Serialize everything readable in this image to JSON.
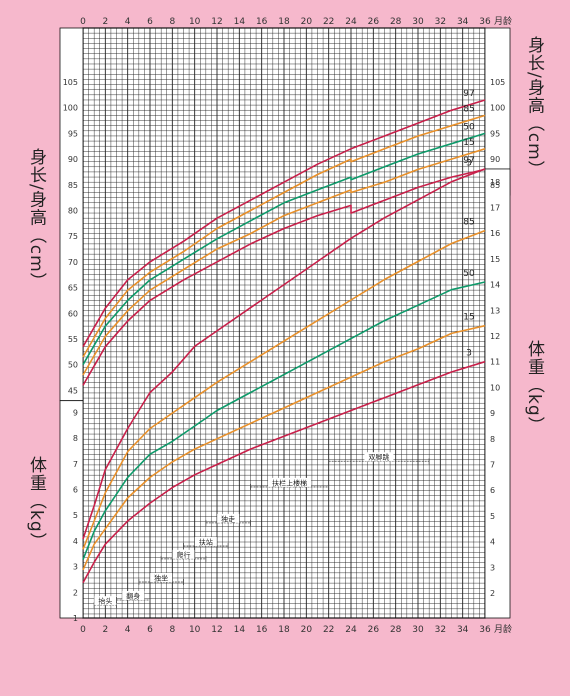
{
  "chart_data": {
    "type": "line",
    "x_unit_label": "月龄",
    "x_ticks": [
      0,
      2,
      4,
      6,
      8,
      10,
      12,
      14,
      16,
      18,
      20,
      22,
      24,
      26,
      28,
      30,
      32,
      34,
      36
    ],
    "x_range": [
      0,
      36
    ],
    "height": {
      "axis_label_left": "身长/身高（cm）",
      "axis_label_right": "身长/身高（cm）",
      "ylim": [
        40,
        110
      ],
      "left_ticks": [
        45,
        50,
        55,
        60,
        65,
        70,
        75,
        80,
        85,
        90,
        95,
        100,
        105
      ],
      "right_ticks": [
        85,
        90,
        95,
        100,
        105
      ],
      "series": [
        {
          "name": "97",
          "color": "#c8204a",
          "x": [
            0,
            2,
            4,
            6,
            9,
            12,
            15,
            18,
            21,
            24,
            24,
            27,
            30,
            33,
            36
          ],
          "y": [
            53.5,
            61,
            66.5,
            70,
            74,
            78.5,
            82,
            85.5,
            89,
            92,
            92,
            94.5,
            97,
            99.5,
            101.5
          ]
        },
        {
          "name": "85",
          "color": "#e8902a",
          "x": [
            0,
            2,
            4,
            6,
            9,
            12,
            15,
            18,
            21,
            24,
            24,
            27,
            30,
            33,
            36
          ],
          "y": [
            51.5,
            59,
            64.5,
            68,
            72,
            76.5,
            80,
            83.5,
            87,
            90,
            89.5,
            92,
            94.5,
            96.5,
            98.5
          ]
        },
        {
          "name": "50",
          "color": "#0e9a6a",
          "x": [
            0,
            2,
            4,
            6,
            9,
            12,
            15,
            18,
            21,
            24,
            24,
            27,
            30,
            33,
            36
          ],
          "y": [
            50,
            57.5,
            62.5,
            66.5,
            70.5,
            74.5,
            78,
            81.5,
            84,
            86.5,
            86,
            88.5,
            91,
            93,
            95
          ]
        },
        {
          "name": "15",
          "color": "#e8902a",
          "x": [
            0,
            2,
            4,
            6,
            9,
            12,
            15,
            18,
            21,
            24,
            24,
            27,
            30,
            33,
            36
          ],
          "y": [
            48,
            55.5,
            60.5,
            64.5,
            68.5,
            72.5,
            75.5,
            79,
            81.5,
            84,
            83.5,
            85.5,
            88,
            90,
            92
          ]
        },
        {
          "name": "3",
          "color": "#c8204a",
          "x": [
            0,
            2,
            4,
            6,
            9,
            12,
            15,
            18,
            21,
            24,
            24,
            27,
            30,
            33,
            36
          ],
          "y": [
            46,
            53.5,
            58.5,
            62.5,
            66.5,
            70,
            73.5,
            76.5,
            79,
            81,
            79.5,
            82,
            84.5,
            86.5,
            88
          ]
        }
      ]
    },
    "weight": {
      "axis_label_left": "体重（kg）",
      "axis_label_right": "体重（kg）",
      "ylim": [
        1,
        19
      ],
      "left_ticks": [
        1,
        2,
        3,
        4,
        5,
        6,
        7,
        8,
        9
      ],
      "right_ticks": [
        2,
        3,
        4,
        5,
        6,
        7,
        8,
        9,
        10,
        11,
        12,
        13,
        14,
        15,
        16,
        17,
        18
      ],
      "series": [
        {
          "name": "97",
          "color": "#c8204a",
          "x": [
            0,
            1,
            2,
            4,
            6,
            8,
            10,
            12,
            15,
            18,
            21,
            24,
            27,
            30,
            33,
            36
          ],
          "y": [
            4.1,
            5.4,
            6.8,
            8.4,
            9.8,
            10.6,
            11.6,
            12.2,
            13.1,
            14,
            14.9,
            15.8,
            16.6,
            17.3,
            18,
            18.5
          ]
        },
        {
          "name": "85",
          "color": "#e8902a",
          "x": [
            0,
            1,
            2,
            4,
            6,
            8,
            10,
            12,
            15,
            18,
            21,
            24,
            27,
            30,
            33,
            36
          ],
          "y": [
            3.7,
            4.8,
            5.9,
            7.5,
            8.4,
            9,
            9.6,
            10.2,
            11,
            11.8,
            12.6,
            13.4,
            14.2,
            14.9,
            15.6,
            16.1
          ]
        },
        {
          "name": "50",
          "color": "#0e9a6a",
          "x": [
            0,
            1,
            2,
            4,
            6,
            8,
            10,
            12,
            15,
            18,
            21,
            24,
            27,
            30,
            33,
            36
          ],
          "y": [
            3.3,
            4.4,
            5.2,
            6.5,
            7.4,
            7.9,
            8.5,
            9.1,
            9.8,
            10.5,
            11.2,
            11.9,
            12.6,
            13.2,
            13.8,
            14.1
          ]
        },
        {
          "name": "15",
          "color": "#e8902a",
          "x": [
            0,
            1,
            2,
            4,
            6,
            8,
            10,
            12,
            15,
            18,
            21,
            24,
            27,
            30,
            33,
            36
          ],
          "y": [
            2.9,
            3.9,
            4.5,
            5.7,
            6.5,
            7.1,
            7.6,
            8,
            8.6,
            9.2,
            9.8,
            10.4,
            11,
            11.5,
            12.1,
            12.4
          ]
        },
        {
          "name": "3",
          "color": "#c8204a",
          "x": [
            0,
            1,
            2,
            4,
            6,
            8,
            10,
            12,
            15,
            18,
            21,
            24,
            27,
            30,
            33,
            36
          ],
          "y": [
            2.4,
            3.2,
            3.9,
            4.8,
            5.5,
            6.1,
            6.6,
            7,
            7.6,
            8.1,
            8.6,
            9.1,
            9.6,
            10.1,
            10.6,
            11
          ]
        }
      ]
    },
    "milestones": [
      {
        "label": "抬头",
        "x_start": 1,
        "x_end": 3,
        "y": 1.5
      },
      {
        "label": "翻身",
        "x_start": 3,
        "x_end": 6,
        "y": 1.7
      },
      {
        "label": "独坐",
        "x_start": 5,
        "x_end": 9,
        "y": 2.4
      },
      {
        "label": "爬行",
        "x_start": 7,
        "x_end": 11,
        "y": 3.3
      },
      {
        "label": "扶站",
        "x_start": 9,
        "x_end": 13,
        "y": 3.8
      },
      {
        "label": "独走",
        "x_start": 11,
        "x_end": 15,
        "y": 4.7
      },
      {
        "label": "扶栏上楼梯",
        "x_start": 15,
        "x_end": 22,
        "y": 6.1
      },
      {
        "label": "双脚跳",
        "x_start": 22,
        "x_end": 31,
        "y": 7.1
      }
    ]
  }
}
